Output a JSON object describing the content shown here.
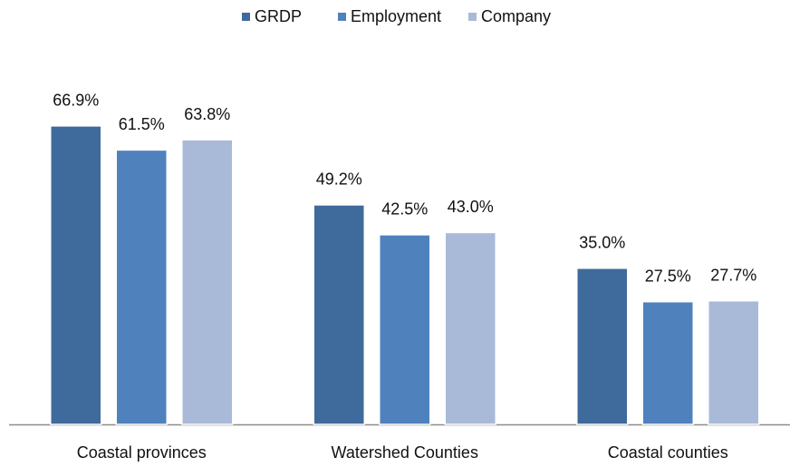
{
  "chart_data": {
    "type": "bar",
    "categories": [
      "Coastal provinces",
      "Watershed Counties",
      "Coastal counties"
    ],
    "series": [
      {
        "name": "GRDP",
        "color": "#3f6a9c",
        "values": [
          66.9,
          49.2,
          35.0
        ],
        "value_labels": [
          "66.9%",
          "49.2%",
          "35.0%"
        ]
      },
      {
        "name": "Employment",
        "color": "#4f81bd",
        "values": [
          61.5,
          42.5,
          27.5
        ],
        "value_labels": [
          "61.5%",
          "42.5%",
          "27.5%"
        ]
      },
      {
        "name": "Company",
        "color": "#a9b9d8",
        "values": [
          63.8,
          43.0,
          27.7
        ],
        "value_labels": [
          "63.8%",
          "43.0%",
          "27.7%"
        ]
      }
    ],
    "legend": "top"
  }
}
